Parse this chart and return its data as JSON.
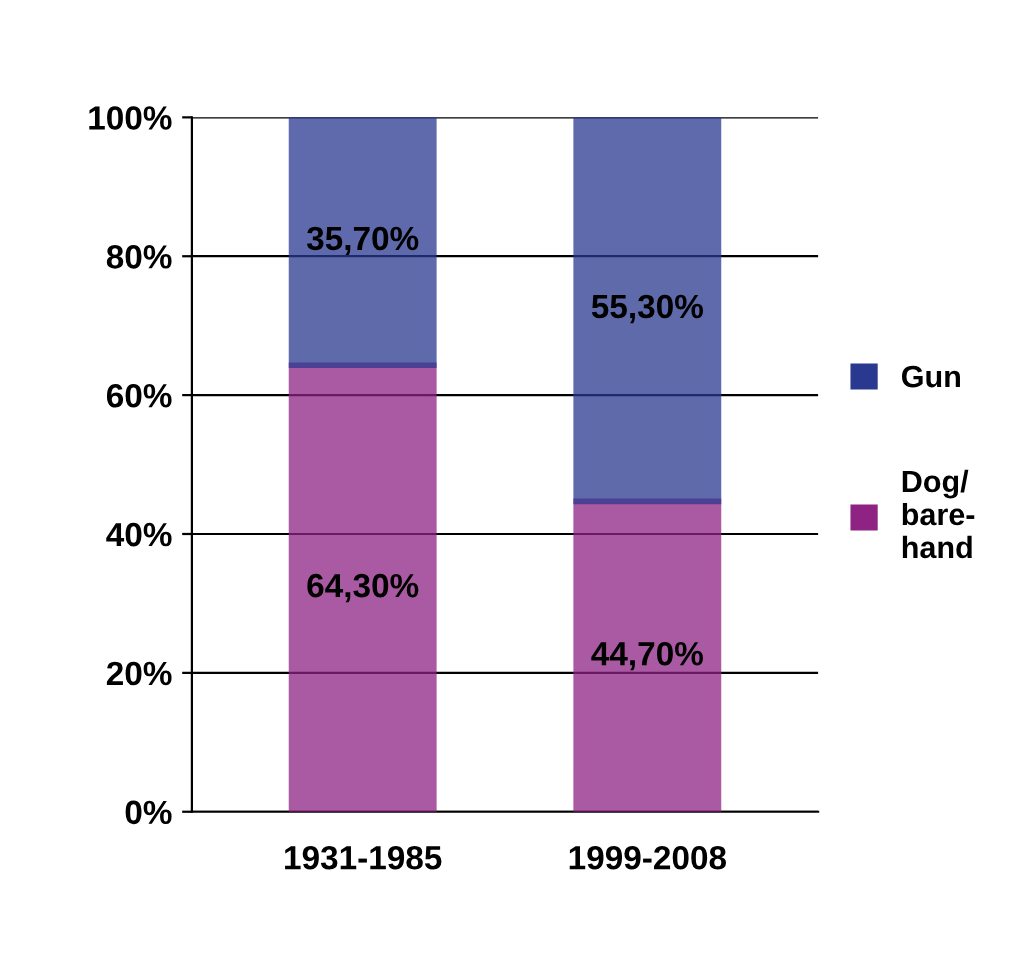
{
  "chart_data": {
    "type": "bar",
    "stacked": true,
    "categories": [
      "1931-1985",
      "1999-2008"
    ],
    "series": [
      {
        "name": "Dog/\nbare-\nhand",
        "color": "#8e2383",
        "values": [
          64.3,
          44.7
        ],
        "value_labels": [
          "64,30%",
          "44,70%"
        ]
      },
      {
        "name": "Gun",
        "color": "#2a3990",
        "values": [
          35.7,
          55.3
        ],
        "value_labels": [
          "35,70%",
          "55,30%"
        ]
      }
    ],
    "ylim": [
      0,
      100
    ],
    "yticks": [
      {
        "value": 0,
        "label": "0%"
      },
      {
        "value": 20,
        "label": "20%"
      },
      {
        "value": 40,
        "label": "40%"
      },
      {
        "value": 60,
        "label": "60%"
      },
      {
        "value": 80,
        "label": "80%"
      },
      {
        "value": 100,
        "label": "100%"
      }
    ],
    "grid": "y",
    "legend": "right"
  }
}
